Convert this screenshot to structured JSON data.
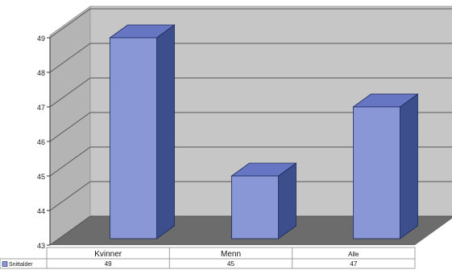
{
  "chart_data": {
    "type": "bar",
    "categories": [
      "Kvinner",
      "Menn",
      "Alle"
    ],
    "series": [
      {
        "name": "Snittalder",
        "values": [
          49,
          45,
          47
        ],
        "color": "#8a97d6"
      }
    ],
    "yticks": [
      43,
      44,
      45,
      46,
      47,
      48,
      49
    ],
    "ylim": [
      43,
      49.8
    ],
    "grid": true,
    "legend_position": "left of data table",
    "data_table": true
  },
  "colors": {
    "back_wall": "#c6c6c6",
    "side_wall": "#b4b4b4",
    "floor": "#6c6c6c",
    "bar_front": "#8a97d6",
    "bar_side": "#3c4e8c",
    "bar_top": "#6676c2"
  }
}
